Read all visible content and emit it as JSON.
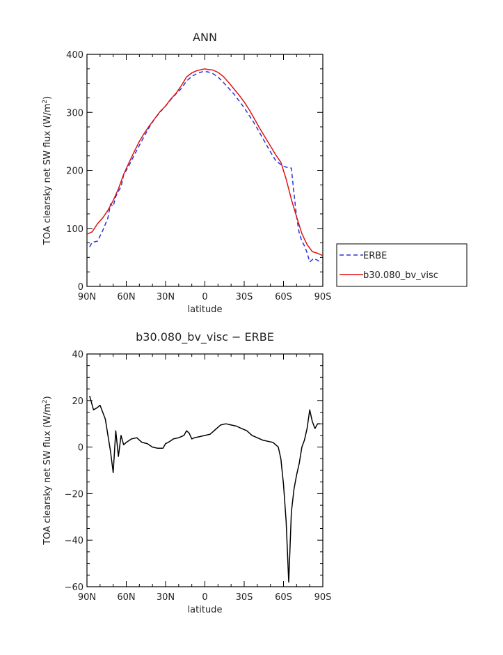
{
  "chart_data": [
    {
      "type": "line",
      "title": "ANN",
      "xlabel": "latitude",
      "ylabel": "TOA clearsky net SW flux (W/m",
      "ylabel_sup": "2",
      "ylabel_tail": ")",
      "xlim": [
        90,
        -90
      ],
      "ylim": [
        0,
        400
      ],
      "xticks": [
        90,
        60,
        30,
        0,
        -30,
        -60,
        -90
      ],
      "xtick_labels": [
        "90N",
        "60N",
        "30N",
        "0",
        "30S",
        "60S",
        "90S"
      ],
      "yticks": [
        0,
        100,
        200,
        300,
        400
      ],
      "ytick_labels": [
        "0",
        "100",
        "200",
        "300",
        "400"
      ],
      "legend_position": "right",
      "series": [
        {
          "name": "ERBE",
          "color": "#2233dd",
          "dash": "dashed",
          "x": [
            88,
            86,
            82,
            78,
            74,
            72,
            70,
            68,
            66,
            64,
            62,
            58,
            54,
            50,
            46,
            42,
            38,
            34,
            30,
            26,
            22,
            18,
            14,
            10,
            6,
            2,
            0,
            -2,
            -6,
            -10,
            -14,
            -18,
            -22,
            -26,
            -30,
            -34,
            -38,
            -42,
            -46,
            -50,
            -54,
            -58,
            -60,
            -63,
            -66,
            -68,
            -70,
            -72,
            -74,
            -76,
            -78,
            -80,
            -83,
            -86,
            -89
          ],
          "values": [
            68,
            76,
            78,
            96,
            118,
            142,
            138,
            155,
            164,
            172,
            192,
            208,
            226,
            243,
            260,
            276,
            290,
            301,
            311,
            322,
            332,
            341,
            354,
            362,
            367,
            370,
            370,
            370,
            367,
            361,
            352,
            342,
            332,
            320,
            308,
            294,
            280,
            264,
            248,
            232,
            217,
            210,
            207,
            205,
            204,
            160,
            120,
            92,
            78,
            70,
            58,
            42,
            48,
            45,
            40
          ]
        },
        {
          "name": "b30.080_bv_visc",
          "color": "#dd1111",
          "dash": "solid",
          "x": [
            90,
            86,
            82,
            78,
            74,
            70,
            66,
            62,
            58,
            54,
            50,
            46,
            42,
            38,
            34,
            30,
            26,
            22,
            18,
            14,
            10,
            6,
            2,
            0,
            -2,
            -6,
            -10,
            -14,
            -18,
            -22,
            -26,
            -30,
            -34,
            -38,
            -42,
            -46,
            -50,
            -54,
            -58,
            -62,
            -66,
            -70,
            -74,
            -78,
            -82,
            -86,
            -90
          ],
          "values": [
            90,
            94,
            108,
            118,
            131,
            148,
            168,
            193,
            213,
            232,
            250,
            265,
            278,
            290,
            302,
            311,
            323,
            333,
            346,
            361,
            368,
            372,
            374,
            375,
            374,
            373,
            369,
            362,
            352,
            341,
            330,
            318,
            304,
            288,
            272,
            257,
            242,
            227,
            214,
            185,
            150,
            120,
            91,
            72,
            60,
            57,
            53
          ]
        }
      ]
    },
    {
      "type": "line",
      "title": "b30.080_bv_visc − ERBE",
      "xlabel": "latitude",
      "ylabel": "TOA clearsky net SW flux (W/m",
      "ylabel_sup": "2",
      "ylabel_tail": ")",
      "xlim": [
        90,
        -90
      ],
      "ylim": [
        -60,
        40
      ],
      "xticks": [
        90,
        60,
        30,
        0,
        -30,
        -60,
        -90
      ],
      "xtick_labels": [
        "90N",
        "60N",
        "30N",
        "0",
        "30S",
        "60S",
        "90S"
      ],
      "yticks": [
        -60,
        -40,
        -20,
        0,
        20,
        40
      ],
      "ytick_labels": [
        "−60",
        "−40",
        "−20",
        "0",
        "20",
        "40"
      ],
      "series": [
        {
          "color": "#000000",
          "dash": "solid",
          "x": [
            88,
            85,
            82,
            80,
            76,
            72,
            70,
            68,
            66,
            64,
            62,
            60,
            56,
            52,
            48,
            44,
            40,
            36,
            32,
            30,
            28,
            24,
            20,
            16,
            14,
            12,
            10,
            8,
            4,
            0,
            -4,
            -8,
            -12,
            -16,
            -20,
            -24,
            -28,
            -32,
            -36,
            -40,
            -44,
            -48,
            -52,
            -56,
            -58,
            -60,
            -62,
            -64,
            -66,
            -68,
            -70,
            -72,
            -74,
            -76,
            -78,
            -80,
            -82,
            -84,
            -86,
            -88
          ],
          "values": [
            22,
            16,
            17,
            18,
            12,
            -2,
            -11,
            7,
            -4,
            5,
            1,
            2,
            3.5,
            4,
            2,
            1.5,
            0,
            -0.5,
            -0.5,
            1.5,
            2,
            3.5,
            4,
            5,
            7,
            6,
            3.5,
            4,
            4.5,
            5,
            5.5,
            7.5,
            9.5,
            10,
            9.5,
            9,
            8,
            7,
            5,
            4,
            3,
            2.5,
            2,
            0,
            -5,
            -16,
            -32,
            -58,
            -28,
            -18,
            -12,
            -7,
            0,
            3,
            8,
            16,
            11,
            8,
            10,
            10
          ]
        }
      ]
    }
  ]
}
